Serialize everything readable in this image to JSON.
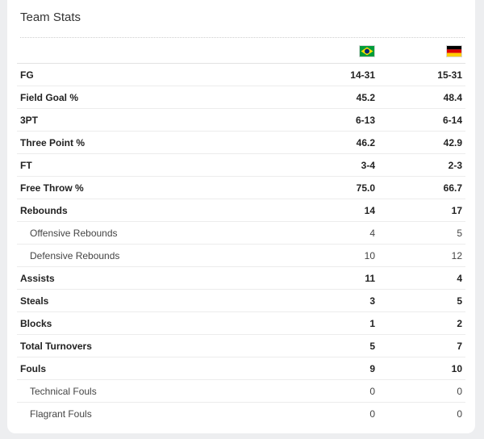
{
  "title": "Team Stats",
  "teams": {
    "team_a": {
      "flag_icon": "brazil-flag-icon",
      "colors": {
        "green": "#009c3b",
        "yellow": "#ffdf00",
        "blue": "#002776"
      }
    },
    "team_b": {
      "flag_icon": "germany-flag-icon",
      "colors": {
        "black": "#000000",
        "red": "#dd0000",
        "gold": "#ffce00"
      }
    }
  },
  "rows": [
    {
      "label": "FG",
      "a": "14-31",
      "b": "15-31",
      "style": "main"
    },
    {
      "label": "Field Goal %",
      "a": "45.2",
      "b": "48.4",
      "style": "main"
    },
    {
      "label": "3PT",
      "a": "6-13",
      "b": "6-14",
      "style": "main"
    },
    {
      "label": "Three Point %",
      "a": "46.2",
      "b": "42.9",
      "style": "main"
    },
    {
      "label": "FT",
      "a": "3-4",
      "b": "2-3",
      "style": "main"
    },
    {
      "label": "Free Throw %",
      "a": "75.0",
      "b": "66.7",
      "style": "main"
    },
    {
      "label": "Rebounds",
      "a": "14",
      "b": "17",
      "style": "main"
    },
    {
      "label": "Offensive Rebounds",
      "a": "4",
      "b": "5",
      "style": "sub"
    },
    {
      "label": "Defensive Rebounds",
      "a": "10",
      "b": "12",
      "style": "sub"
    },
    {
      "label": "Assists",
      "a": "11",
      "b": "4",
      "style": "main"
    },
    {
      "label": "Steals",
      "a": "3",
      "b": "5",
      "style": "main"
    },
    {
      "label": "Blocks",
      "a": "1",
      "b": "2",
      "style": "main"
    },
    {
      "label": "Total Turnovers",
      "a": "5",
      "b": "7",
      "style": "main"
    },
    {
      "label": "Fouls",
      "a": "9",
      "b": "10",
      "style": "main"
    },
    {
      "label": "Technical Fouls",
      "a": "0",
      "b": "0",
      "style": "sub"
    },
    {
      "label": "Flagrant Fouls",
      "a": "0",
      "b": "0",
      "style": "sub"
    }
  ]
}
